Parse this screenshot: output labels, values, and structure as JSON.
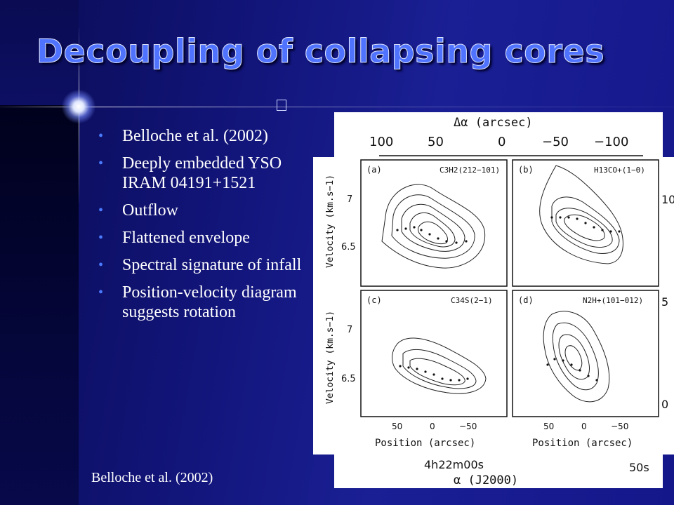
{
  "slide": {
    "title": "Decoupling of collapsing cores",
    "bullets": [
      "Belloche et al. (2002)",
      "Deeply embedded YSO IRAM 04191+1521",
      "Outflow",
      "Flattened envelope",
      "Spectral signature of infall",
      "Position-velocity diagram suggests rotation"
    ],
    "caption": "Belloche et al. (2002)",
    "bullet_color": "#4a7bff",
    "title_color": "#4f73ff"
  },
  "figure": {
    "back_map": {
      "top_axis_label": "Δα (arcsec)",
      "top_ticks": [
        "100",
        "50",
        "0",
        "−50",
        "−100"
      ],
      "right_ticks": [
        "10",
        "5",
        "0"
      ],
      "bottom_label": "α (J2000)",
      "bottom_ticks": [
        "4h22m00s",
        "50s"
      ]
    },
    "panels": [
      {
        "tag": "(a)",
        "line": "C3H2(212−101)"
      },
      {
        "tag": "(b)",
        "line": "H13CO+(1−0)"
      },
      {
        "tag": "(c)",
        "line": "C34S(2−1)"
      },
      {
        "tag": "(d)",
        "line": "N2H+(101−012)"
      }
    ],
    "y_axis_label": "Velocity (km.s−1)",
    "y_ticks": [
      "7",
      "6.5"
    ],
    "x_ticks": [
      "50",
      "0",
      "−50"
    ],
    "x_axis_label": "Position (arcsec)"
  }
}
